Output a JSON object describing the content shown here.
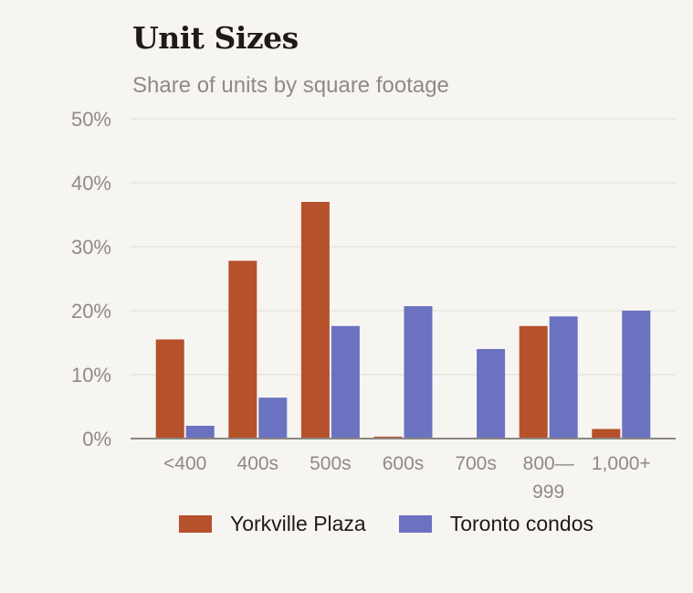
{
  "chart_data": {
    "type": "bar",
    "title": "Unit Sizes",
    "subtitle": "Share of units by square footage",
    "categories": [
      "<400",
      "400s",
      "500s",
      "600s",
      "700s",
      "800—999",
      "1,000+"
    ],
    "category_lines": [
      [
        "<400"
      ],
      [
        "400s"
      ],
      [
        "500s"
      ],
      [
        "600s"
      ],
      [
        "700s"
      ],
      [
        "800—",
        "999"
      ],
      [
        "1,000+"
      ]
    ],
    "series": [
      {
        "name": "Yorkville Plaza",
        "color": "#b5512b",
        "values": [
          15.5,
          27.8,
          37.0,
          0.3,
          0,
          17.6,
          1.5
        ]
      },
      {
        "name": "Toronto condos",
        "color": "#6b72c0",
        "values": [
          2.0,
          6.4,
          17.6,
          20.7,
          14.0,
          19.1,
          20.0
        ]
      }
    ],
    "ylim": [
      0,
      50
    ],
    "yticks": [
      0,
      10,
      20,
      30,
      40,
      50
    ],
    "ytick_labels": [
      "0%",
      "10%",
      "20%",
      "30%",
      "40%",
      "50%"
    ],
    "grid": true,
    "legend_position": "bottom"
  }
}
